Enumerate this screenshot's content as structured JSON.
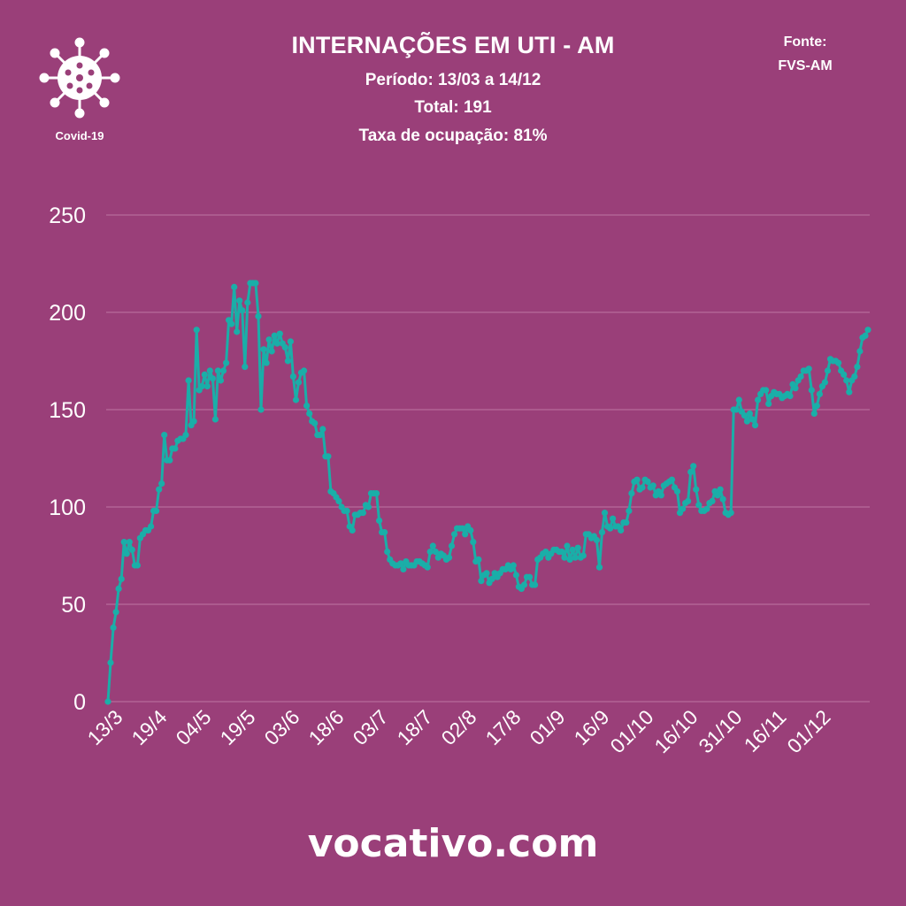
{
  "header": {
    "title": "INTERNAÇÕES EM UTI - AM",
    "period": "Período: 13/03 a 14/12",
    "total": "Total: 191",
    "occupancy": "Taxa de ocupação: 81%",
    "source_label": "Fonte:",
    "source_name": "FVS-AM",
    "logo_label": "Covid-19",
    "logo_icon": "virus-icon"
  },
  "footer": {
    "brand": "vocativo.com"
  },
  "colors": {
    "background": "#9a3f79",
    "line": "#1aaea8",
    "grid": "#b76a9b",
    "text": "#ffffff"
  },
  "chart_data": {
    "type": "line",
    "title": "INTERNAÇÕES EM UTI - AM",
    "xlabel": "",
    "ylabel": "",
    "ylim": [
      0,
      250
    ],
    "yticks": [
      0,
      50,
      100,
      150,
      200,
      250
    ],
    "grid": true,
    "legend": "none",
    "xtick_labels": [
      "13/3",
      "19/4",
      "04/5",
      "19/5",
      "03/6",
      "18/6",
      "03/7",
      "18/7",
      "02/8",
      "17/8",
      "01/9",
      "16/9",
      "01/10",
      "16/10",
      "31/10",
      "16/11",
      "01/12"
    ],
    "series": [
      {
        "name": "",
        "values": [
          0,
          20,
          38,
          46,
          58,
          63,
          82,
          76,
          82,
          78,
          70,
          70,
          84,
          86,
          88,
          88,
          90,
          98,
          98,
          109,
          112,
          137,
          124,
          124,
          130,
          130,
          134,
          135,
          135,
          137,
          165,
          142,
          144,
          191,
          160,
          162,
          168,
          162,
          170,
          166,
          145,
          170,
          165,
          170,
          174,
          196,
          194,
          213,
          190,
          206,
          201,
          172,
          205,
          215,
          215,
          215,
          198,
          150,
          181,
          174,
          186,
          180,
          188,
          184,
          189,
          184,
          182,
          175,
          185,
          167,
          155,
          164,
          169,
          170,
          152,
          148,
          144,
          143,
          137,
          137,
          140,
          126,
          126,
          108,
          107,
          105,
          103,
          100,
          98,
          98,
          90,
          88,
          96,
          96,
          97,
          97,
          101,
          100,
          107,
          107,
          107,
          93,
          87,
          87,
          77,
          73,
          71,
          70,
          70,
          71,
          68,
          72,
          70,
          70,
          70,
          72,
          72,
          71,
          70,
          69,
          77,
          80,
          77,
          74,
          76,
          75,
          73,
          74,
          80,
          86,
          89,
          89,
          89,
          86,
          90,
          88,
          82,
          72,
          73,
          62,
          65,
          66,
          61,
          63,
          66,
          64,
          66,
          68,
          68,
          70,
          68,
          70,
          65,
          59,
          58,
          60,
          64,
          64,
          60,
          60,
          73,
          74,
          76,
          77,
          74,
          76,
          78,
          78,
          77,
          77,
          74,
          80,
          73,
          78,
          74,
          79,
          74,
          75,
          86,
          86,
          84,
          85,
          83,
          69,
          87,
          97,
          90,
          89,
          94,
          90,
          90,
          88,
          92,
          92,
          98,
          107,
          113,
          114,
          109,
          110,
          114,
          113,
          110,
          111,
          106,
          108,
          106,
          111,
          112,
          113,
          114,
          110,
          108,
          97,
          99,
          102,
          103,
          118,
          121,
          109,
          101,
          98,
          98,
          99,
          102,
          103,
          108,
          106,
          109,
          104,
          97,
          96,
          97,
          150,
          150,
          155,
          149,
          147,
          144,
          148,
          145,
          142,
          155,
          158,
          160,
          160,
          153,
          157,
          159,
          158,
          158,
          156,
          157,
          158,
          157,
          163,
          161,
          165,
          167,
          170,
          170,
          171,
          160,
          148,
          152,
          158,
          162,
          164,
          170,
          176,
          175,
          175,
          174,
          170,
          168,
          165,
          159,
          165,
          167,
          172,
          180,
          187,
          188,
          191
        ]
      }
    ]
  }
}
